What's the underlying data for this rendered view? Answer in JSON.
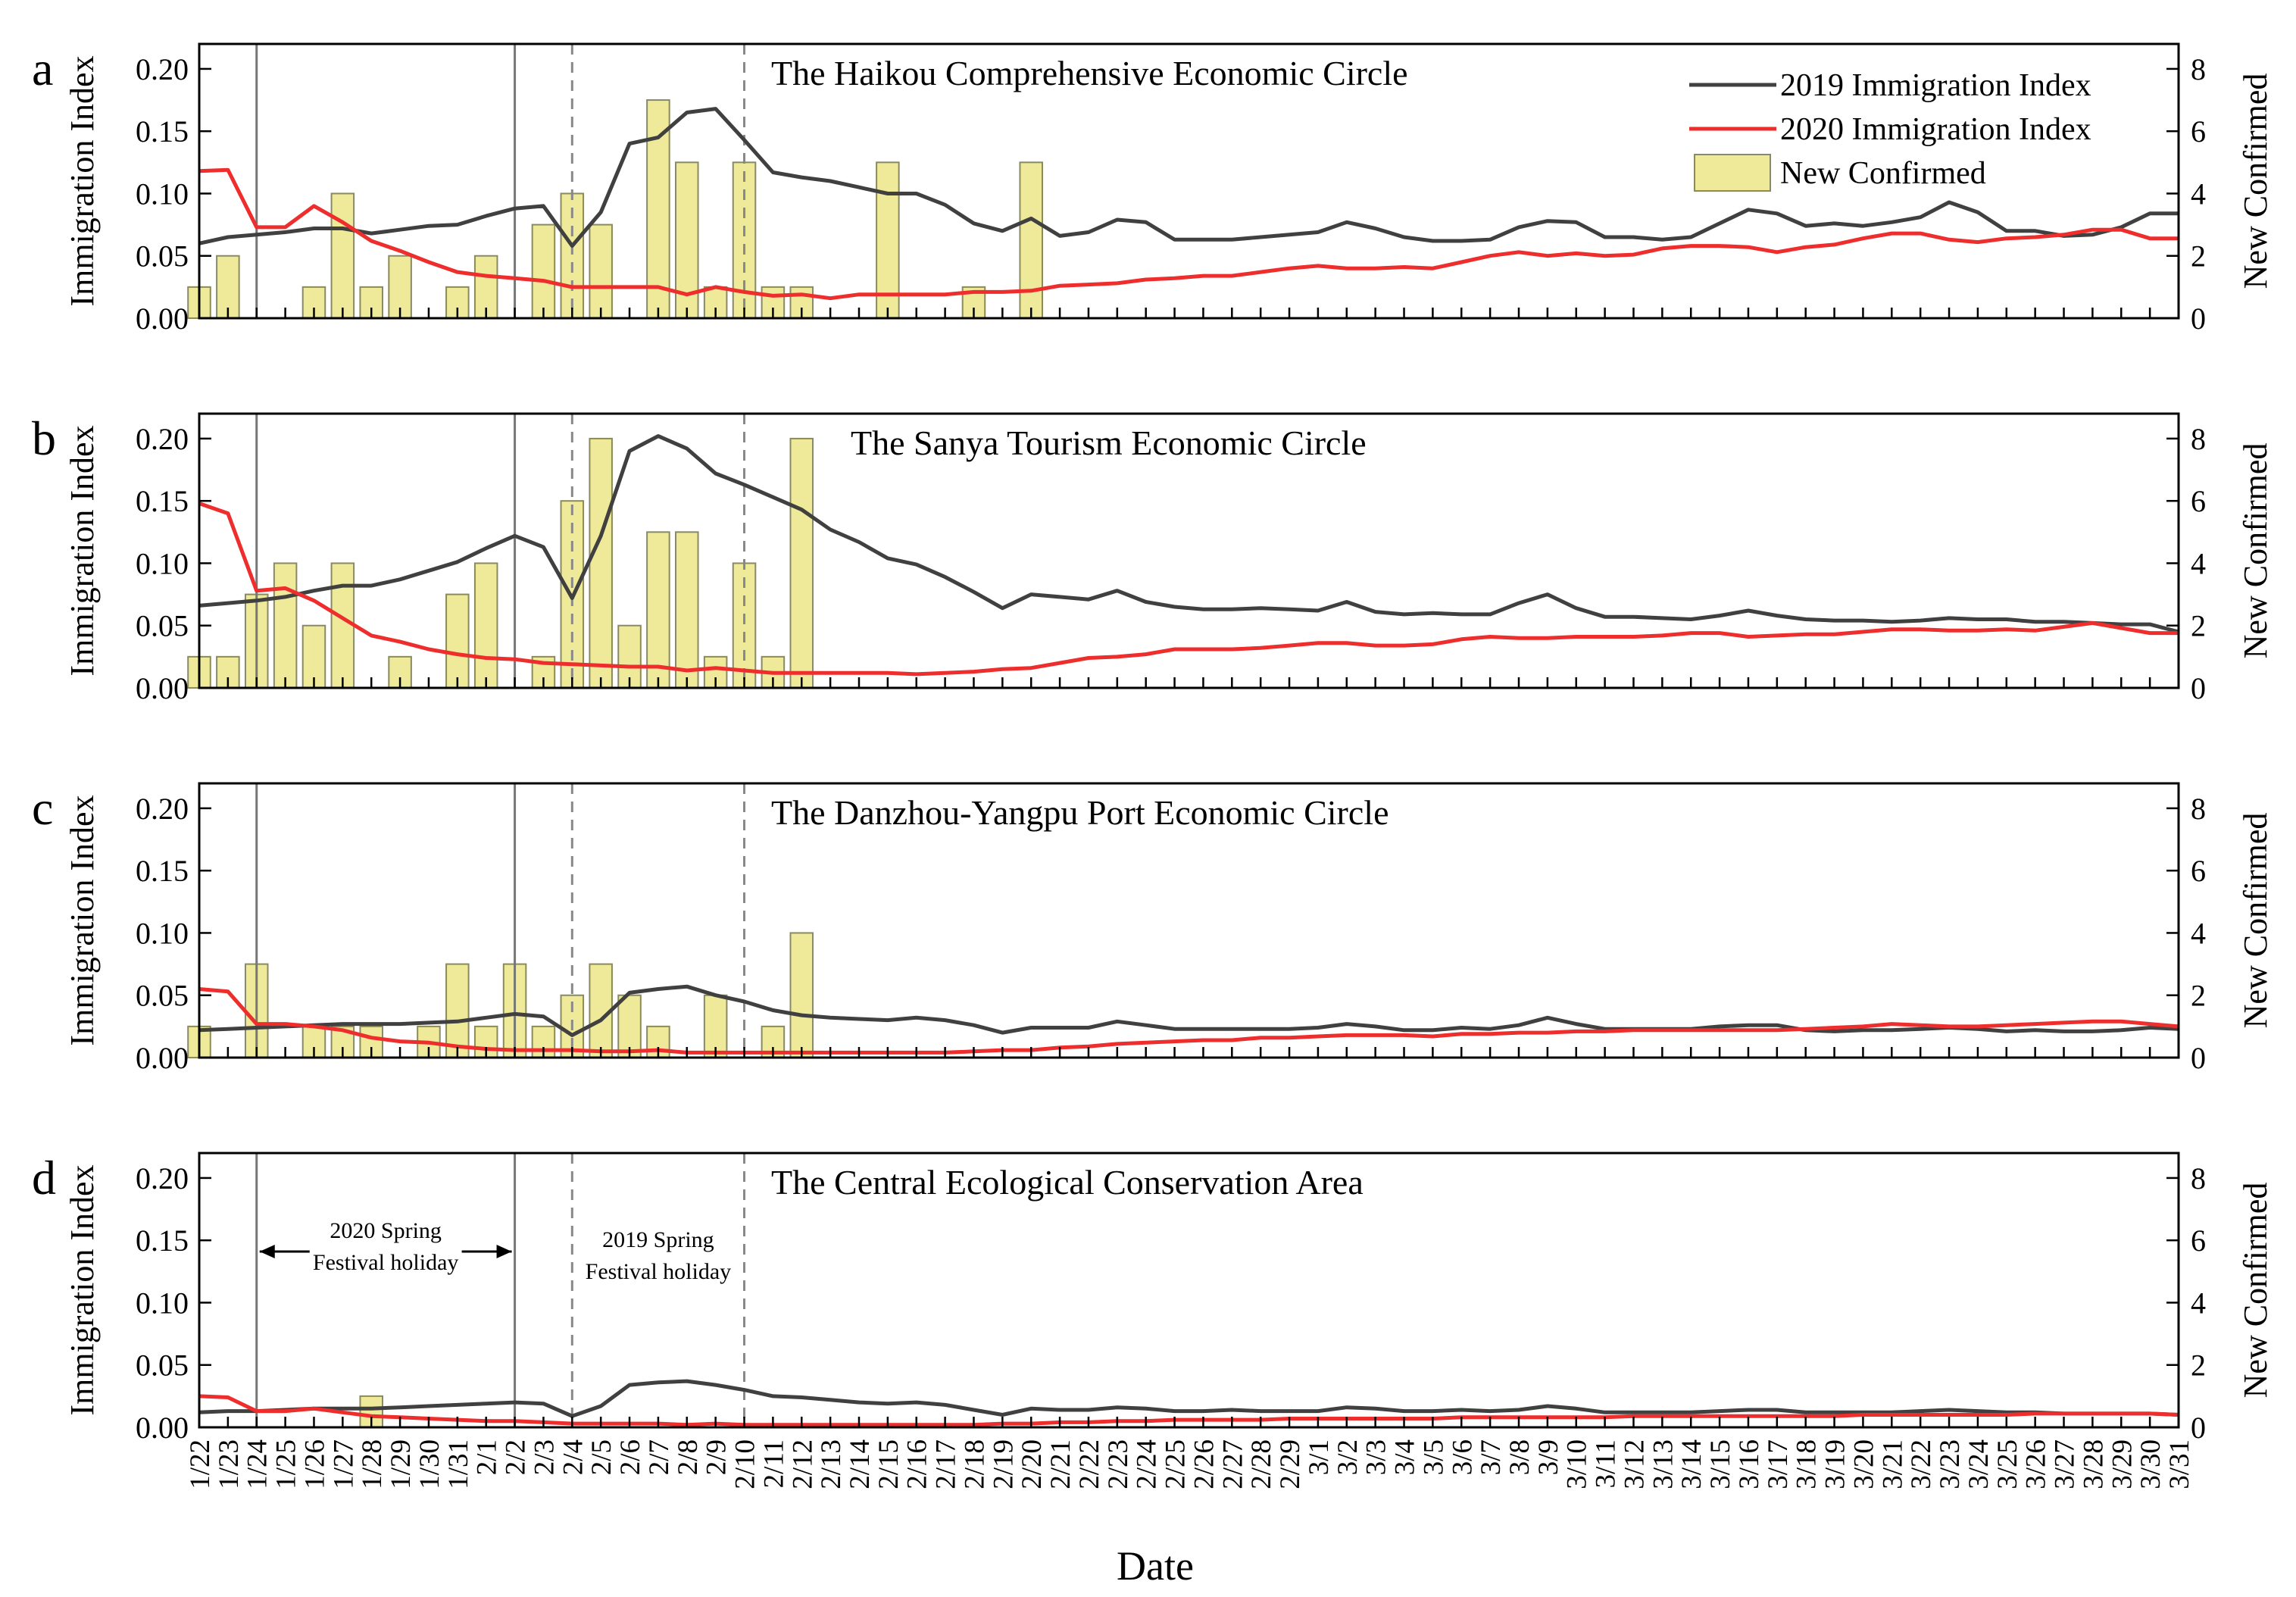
{
  "figure": {
    "x_axis_title": "Date",
    "left_axis_title": "Immigration Index",
    "right_axis_title": "New Confirmed",
    "left_ticks": [
      "0.00",
      "0.05",
      "0.10",
      "0.15",
      "0.20"
    ],
    "right_ticks": [
      "0",
      "2",
      "4",
      "6",
      "8"
    ],
    "legend": {
      "series_2019": "2019 Immigration Index",
      "series_2020": "2020 Immigration Index",
      "bars": "New Confirmed"
    },
    "annotations": {
      "holiday_2020_line1": "2020 Spring",
      "holiday_2020_line2": "Festival holiday",
      "holiday_2019_line1": "2019 Spring",
      "holiday_2019_line2": "Festival holiday"
    },
    "colors": {
      "series_2019": "#404040",
      "series_2020": "#ee2d2d",
      "bars_fill": "#eeea9a",
      "bars_stroke": "#8a8a60",
      "solid_marker": "#777777",
      "dashed_marker": "#888888"
    }
  },
  "chart_data": {
    "type": "line+bar",
    "dates": [
      "1/22",
      "1/23",
      "1/24",
      "1/25",
      "1/26",
      "1/27",
      "1/28",
      "1/29",
      "1/30",
      "1/31",
      "2/1",
      "2/2",
      "2/3",
      "2/4",
      "2/5",
      "2/6",
      "2/7",
      "2/8",
      "2/9",
      "2/10",
      "2/11",
      "2/12",
      "2/13",
      "2/14",
      "2/15",
      "2/16",
      "2/17",
      "2/18",
      "2/19",
      "2/20",
      "2/21",
      "2/22",
      "2/23",
      "2/24",
      "2/25",
      "2/26",
      "2/27",
      "2/28",
      "2/29",
      "3/1",
      "3/2",
      "3/3",
      "3/4",
      "3/5",
      "3/6",
      "3/7",
      "3/8",
      "3/9",
      "3/10",
      "3/11",
      "3/12",
      "3/13",
      "3/14",
      "3/15",
      "3/16",
      "3/17",
      "3/18",
      "3/19",
      "3/20",
      "3/21",
      "3/22",
      "3/23",
      "3/24",
      "3/25",
      "3/26",
      "3/27",
      "3/28",
      "3/29",
      "3/30",
      "3/31"
    ],
    "tick_labels": [
      "1/22",
      "1/23",
      "1/24",
      "1/25",
      "1/26",
      "1/27",
      "1/28",
      "1/29",
      "1/30",
      "1/31",
      "2/1",
      "2/2",
      "2/3",
      "2/4",
      "2/5",
      "2/6",
      "2/7",
      "2/8",
      "2/9",
      "2/10",
      "2/11",
      "2/12",
      "2/13",
      "2/14",
      "2/15",
      "2/16",
      "2/17",
      "2/18",
      "2/19",
      "2/20",
      "2/21",
      "2/22",
      "2/23",
      "2/24",
      "2/25",
      "2/26",
      "2/27",
      "2/28",
      "2/29",
      "3/1",
      "3/2",
      "3/3",
      "3/4",
      "3/5",
      "3/6",
      "3/7",
      "3/8",
      "3/9",
      "3/10",
      "3/11",
      "3/12",
      "3/13",
      "3/14",
      "3/15",
      "3/16",
      "3/17",
      "3/18",
      "3/19",
      "3/20",
      "3/21",
      "3/22",
      "3/23",
      "3/24",
      "3/25",
      "3/26",
      "3/27",
      "3/28",
      "3/29",
      "3/30",
      "3/31"
    ],
    "left_ylim": [
      0,
      0.22
    ],
    "right_ylim": [
      0,
      8.8
    ],
    "holiday_2020": [
      "1/24",
      "2/2"
    ],
    "holiday_2019": [
      "2/4",
      "2/10"
    ],
    "panels": [
      {
        "letter": "a",
        "title": "The Haikou Comprehensive Economic Circle",
        "index_2019": [
          0.06,
          0.065,
          0.067,
          0.069,
          0.072,
          0.072,
          0.068,
          0.071,
          0.074,
          0.075,
          0.082,
          0.088,
          0.09,
          0.058,
          0.085,
          0.14,
          0.145,
          0.165,
          0.168,
          0.143,
          0.117,
          0.113,
          0.11,
          0.105,
          0.1,
          0.1,
          0.091,
          0.076,
          0.07,
          0.08,
          0.066,
          0.069,
          0.079,
          0.077,
          0.063,
          0.063,
          0.063,
          0.065,
          0.067,
          0.069,
          0.077,
          0.072,
          0.065,
          0.062,
          0.062,
          0.063,
          0.073,
          0.078,
          0.077,
          0.065,
          0.065,
          0.063,
          0.065,
          0.076,
          0.087,
          0.084,
          0.074,
          0.076,
          0.074,
          0.077,
          0.081,
          0.093,
          0.085,
          0.07,
          0.07,
          0.066,
          0.067,
          0.073,
          0.084,
          0.084
        ],
        "index_2020": [
          0.118,
          0.119,
          0.073,
          0.073,
          0.09,
          0.077,
          0.062,
          0.054,
          0.045,
          0.037,
          0.034,
          0.032,
          0.03,
          0.025,
          0.025,
          0.025,
          0.025,
          0.019,
          0.025,
          0.021,
          0.018,
          0.019,
          0.016,
          0.019,
          0.019,
          0.019,
          0.019,
          0.021,
          0.021,
          0.022,
          0.026,
          0.027,
          0.028,
          0.031,
          0.032,
          0.034,
          0.034,
          0.037,
          0.04,
          0.042,
          0.04,
          0.04,
          0.041,
          0.04,
          0.045,
          0.05,
          0.053,
          0.05,
          0.052,
          0.05,
          0.051,
          0.056,
          0.058,
          0.058,
          0.057,
          0.053,
          0.057,
          0.059,
          0.064,
          0.068,
          0.068,
          0.063,
          0.061,
          0.064,
          0.065,
          0.067,
          0.071,
          0.071,
          0.064,
          0.064
        ],
        "new_confirmed": [
          1,
          2,
          0,
          0,
          1,
          4,
          1,
          2,
          0,
          1,
          2,
          0,
          3,
          4,
          3,
          0,
          7,
          5,
          1,
          5,
          1,
          1,
          0,
          0,
          5,
          0,
          0,
          1,
          0,
          5,
          0,
          0,
          0,
          0,
          0,
          0,
          0,
          0,
          0,
          0,
          0,
          0,
          0,
          0,
          0,
          0,
          0,
          0,
          0,
          0,
          0,
          0,
          0,
          0,
          0,
          0,
          0,
          0,
          0,
          0,
          0,
          0,
          0,
          0,
          0,
          0,
          0,
          0,
          0,
          0
        ]
      },
      {
        "letter": "b",
        "title": "The Sanya Tourism Economic Circle",
        "index_2019": [
          0.066,
          0.068,
          0.07,
          0.073,
          0.078,
          0.082,
          0.082,
          0.087,
          0.094,
          0.101,
          0.112,
          0.122,
          0.113,
          0.072,
          0.122,
          0.19,
          0.202,
          0.192,
          0.172,
          0.163,
          0.153,
          0.143,
          0.127,
          0.117,
          0.104,
          0.099,
          0.089,
          0.077,
          0.064,
          0.075,
          0.073,
          0.071,
          0.078,
          0.069,
          0.065,
          0.063,
          0.063,
          0.064,
          0.063,
          0.062,
          0.069,
          0.061,
          0.059,
          0.06,
          0.059,
          0.059,
          0.068,
          0.075,
          0.064,
          0.057,
          0.057,
          0.056,
          0.055,
          0.058,
          0.062,
          0.058,
          0.055,
          0.054,
          0.054,
          0.053,
          0.054,
          0.056,
          0.055,
          0.055,
          0.053,
          0.053,
          0.052,
          0.051,
          0.051,
          0.045
        ],
        "index_2020": [
          0.148,
          0.14,
          0.078,
          0.08,
          0.07,
          0.056,
          0.042,
          0.037,
          0.031,
          0.027,
          0.024,
          0.023,
          0.02,
          0.019,
          0.018,
          0.017,
          0.017,
          0.014,
          0.016,
          0.014,
          0.012,
          0.012,
          0.012,
          0.012,
          0.012,
          0.011,
          0.012,
          0.013,
          0.015,
          0.016,
          0.02,
          0.024,
          0.025,
          0.027,
          0.031,
          0.031,
          0.031,
          0.032,
          0.034,
          0.036,
          0.036,
          0.034,
          0.034,
          0.035,
          0.039,
          0.041,
          0.04,
          0.04,
          0.041,
          0.041,
          0.041,
          0.042,
          0.044,
          0.044,
          0.041,
          0.042,
          0.043,
          0.043,
          0.045,
          0.047,
          0.047,
          0.046,
          0.046,
          0.047,
          0.046,
          0.049,
          0.052,
          0.048,
          0.044,
          0.044
        ],
        "new_confirmed": [
          1,
          1,
          3,
          4,
          2,
          4,
          0,
          1,
          0,
          3,
          4,
          0,
          1,
          6,
          8,
          2,
          5,
          5,
          1,
          4,
          1,
          8,
          0,
          0,
          0,
          0,
          0,
          0,
          0,
          0,
          0,
          0,
          0,
          0,
          0,
          0,
          0,
          0,
          0,
          0,
          0,
          0,
          0,
          0,
          0,
          0,
          0,
          0,
          0,
          0,
          0,
          0,
          0,
          0,
          0,
          0,
          0,
          0,
          0,
          0,
          0,
          0,
          0,
          0,
          0,
          0,
          0,
          0,
          0,
          0
        ]
      },
      {
        "letter": "c",
        "title": "The Danzhou-Yangpu Port Economic Circle",
        "index_2019": [
          0.022,
          0.023,
          0.024,
          0.025,
          0.026,
          0.027,
          0.027,
          0.027,
          0.028,
          0.029,
          0.032,
          0.035,
          0.033,
          0.018,
          0.03,
          0.052,
          0.055,
          0.057,
          0.05,
          0.045,
          0.038,
          0.034,
          0.032,
          0.031,
          0.03,
          0.032,
          0.03,
          0.026,
          0.02,
          0.024,
          0.024,
          0.024,
          0.029,
          0.026,
          0.023,
          0.023,
          0.023,
          0.023,
          0.023,
          0.024,
          0.027,
          0.025,
          0.022,
          0.022,
          0.024,
          0.023,
          0.026,
          0.032,
          0.027,
          0.023,
          0.023,
          0.023,
          0.023,
          0.025,
          0.026,
          0.026,
          0.022,
          0.021,
          0.022,
          0.022,
          0.023,
          0.024,
          0.023,
          0.021,
          0.022,
          0.021,
          0.021,
          0.022,
          0.024,
          0.023
        ],
        "index_2020": [
          0.055,
          0.053,
          0.027,
          0.027,
          0.025,
          0.022,
          0.016,
          0.013,
          0.012,
          0.009,
          0.007,
          0.006,
          0.006,
          0.006,
          0.005,
          0.005,
          0.006,
          0.004,
          0.004,
          0.004,
          0.004,
          0.004,
          0.004,
          0.004,
          0.004,
          0.004,
          0.004,
          0.005,
          0.006,
          0.006,
          0.008,
          0.009,
          0.011,
          0.012,
          0.013,
          0.014,
          0.014,
          0.016,
          0.016,
          0.017,
          0.018,
          0.018,
          0.018,
          0.017,
          0.019,
          0.019,
          0.02,
          0.02,
          0.021,
          0.021,
          0.022,
          0.022,
          0.022,
          0.022,
          0.022,
          0.022,
          0.023,
          0.024,
          0.025,
          0.027,
          0.026,
          0.025,
          0.025,
          0.026,
          0.027,
          0.028,
          0.029,
          0.029,
          0.027,
          0.025
        ],
        "new_confirmed": [
          1,
          0,
          3,
          0,
          1,
          1,
          1,
          0,
          1,
          3,
          1,
          3,
          1,
          2,
          3,
          2,
          1,
          0,
          2,
          0,
          1,
          4,
          0,
          0,
          0,
          0,
          0,
          0,
          0,
          0,
          0,
          0,
          0,
          0,
          0,
          0,
          0,
          0,
          0,
          0,
          0,
          0,
          0,
          0,
          0,
          0,
          0,
          0,
          0,
          0,
          0,
          0,
          0,
          0,
          0,
          0,
          0,
          0,
          0,
          0,
          0,
          0,
          0,
          0,
          0,
          0,
          0,
          0,
          0,
          0
        ]
      },
      {
        "letter": "d",
        "title": "The Central Ecological Conservation Area",
        "index_2019": [
          0.012,
          0.013,
          0.013,
          0.014,
          0.015,
          0.015,
          0.015,
          0.016,
          0.017,
          0.018,
          0.019,
          0.02,
          0.019,
          0.009,
          0.017,
          0.034,
          0.036,
          0.037,
          0.034,
          0.03,
          0.025,
          0.024,
          0.022,
          0.02,
          0.019,
          0.02,
          0.018,
          0.014,
          0.01,
          0.015,
          0.014,
          0.014,
          0.016,
          0.015,
          0.013,
          0.013,
          0.014,
          0.013,
          0.013,
          0.013,
          0.016,
          0.015,
          0.013,
          0.013,
          0.014,
          0.013,
          0.014,
          0.017,
          0.015,
          0.012,
          0.012,
          0.012,
          0.012,
          0.013,
          0.014,
          0.014,
          0.012,
          0.012,
          0.012,
          0.012,
          0.013,
          0.014,
          0.013,
          0.012,
          0.012,
          0.011,
          0.011,
          0.011,
          0.011,
          0.01
        ],
        "index_2020": [
          0.025,
          0.024,
          0.013,
          0.013,
          0.015,
          0.012,
          0.009,
          0.008,
          0.007,
          0.006,
          0.005,
          0.005,
          0.004,
          0.003,
          0.003,
          0.003,
          0.003,
          0.002,
          0.003,
          0.002,
          0.002,
          0.002,
          0.002,
          0.002,
          0.002,
          0.002,
          0.002,
          0.002,
          0.003,
          0.003,
          0.004,
          0.004,
          0.005,
          0.005,
          0.006,
          0.006,
          0.006,
          0.006,
          0.007,
          0.007,
          0.007,
          0.007,
          0.007,
          0.007,
          0.008,
          0.008,
          0.008,
          0.008,
          0.008,
          0.008,
          0.009,
          0.009,
          0.009,
          0.009,
          0.009,
          0.009,
          0.009,
          0.009,
          0.01,
          0.01,
          0.01,
          0.01,
          0.01,
          0.01,
          0.011,
          0.011,
          0.011,
          0.011,
          0.011,
          0.01
        ],
        "new_confirmed": [
          0,
          0,
          0,
          0,
          0,
          0,
          1,
          0,
          0,
          0,
          0,
          0,
          0,
          0,
          0,
          0,
          0,
          0,
          0,
          0,
          0,
          0,
          0,
          0,
          0,
          0,
          0,
          0,
          0,
          0,
          0,
          0,
          0,
          0,
          0,
          0,
          0,
          0,
          0,
          0,
          0,
          0,
          0,
          0,
          0,
          0,
          0,
          0,
          0,
          0,
          0,
          0,
          0,
          0,
          0,
          0,
          0,
          0,
          0,
          0,
          0,
          0,
          0,
          0,
          0,
          0,
          0,
          0,
          0,
          0
        ]
      }
    ]
  }
}
